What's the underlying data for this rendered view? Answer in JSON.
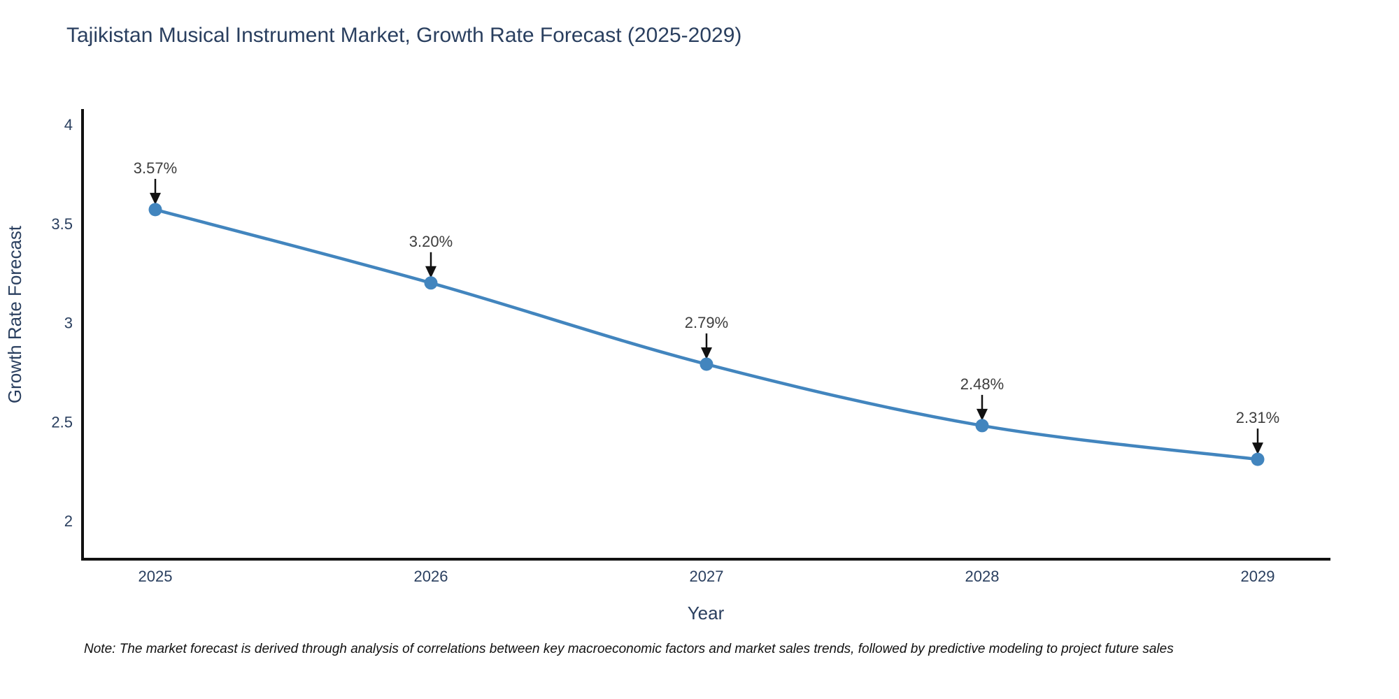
{
  "chart_data": {
    "type": "line",
    "title": "Tajikistan Musical Instrument Market, Growth Rate Forecast (2025-2029)",
    "xlabel": "Year",
    "ylabel": "Growth Rate Forecast",
    "x": [
      2025,
      2026,
      2027,
      2028,
      2029
    ],
    "series": [
      {
        "name": "Growth Rate Forecast",
        "values": [
          3.57,
          3.2,
          2.79,
          2.48,
          2.31
        ],
        "point_labels": [
          "3.57%",
          "3.20%",
          "2.79%",
          "2.48%",
          "2.31%"
        ]
      }
    ],
    "x_tick_labels": [
      "2025",
      "2026",
      "2027",
      "2028",
      "2029"
    ],
    "y_tick_values": [
      4,
      3.5,
      3,
      2.5,
      2
    ],
    "y_tick_labels": [
      "4",
      "3.5",
      "3",
      "2.5",
      "2"
    ],
    "ylim": [
      1.81,
      4.07
    ],
    "grid": false,
    "legend_position": "none",
    "line_style": "smooth-spline",
    "marker_style": "filled-circle",
    "annotation_arrows": true,
    "colors": {
      "line": "#4285be",
      "marker": "#4285be",
      "axis": "#111111",
      "axis_text": "#2a3f5f",
      "annotation_text": "#3d3d3d",
      "arrow": "#111111",
      "background": "#ffffff"
    }
  },
  "footnote": {
    "text": "Note: The market forecast is derived through analysis of correlations between key macroeconomic factors and market sales trends, followed by predictive modeling to project future sales"
  }
}
